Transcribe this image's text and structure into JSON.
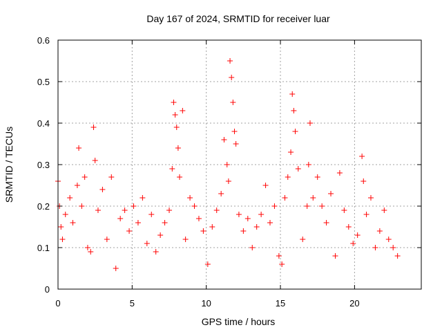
{
  "chart_data": {
    "type": "scatter",
    "title": "Day 167 of 2024, SRMTID for receiver luar",
    "xlabel": "GPS time / hours",
    "ylabel": "SRMTID / TECUs",
    "xlim": [
      0,
      24.5
    ],
    "ylim": [
      0,
      0.6
    ],
    "xticks": [
      0,
      5,
      10,
      15,
      20
    ],
    "xtick_labels": [
      "0",
      "5",
      "10",
      "15",
      "20"
    ],
    "yticks": [
      0,
      0.1,
      0.2,
      0.3,
      0.4,
      0.5,
      0.6
    ],
    "ytick_labels": [
      "0",
      "0.1",
      "0.2",
      "0.3",
      "0.4",
      "0.5",
      "0.6"
    ],
    "grid": true,
    "marker": "plus",
    "color": "#ff0000",
    "x_range_observed": [
      0,
      22.9
    ],
    "series": [
      {
        "name": "SRMTID",
        "x": [
          0.0,
          0.1,
          0.2,
          0.3,
          0.5,
          0.8,
          1.0,
          1.3,
          1.4,
          1.6,
          1.8,
          2.0,
          2.2,
          2.4,
          2.5,
          2.7,
          3.0,
          3.3,
          3.6,
          3.9,
          4.2,
          4.5,
          4.8,
          5.1,
          5.4,
          5.7,
          6.0,
          6.3,
          6.6,
          6.9,
          7.2,
          7.5,
          7.7,
          7.8,
          7.9,
          8.0,
          8.1,
          8.2,
          8.4,
          8.6,
          8.9,
          9.2,
          9.5,
          9.8,
          10.1,
          10.4,
          10.7,
          11.0,
          11.2,
          11.4,
          11.5,
          11.6,
          11.7,
          11.8,
          11.9,
          12.0,
          12.2,
          12.5,
          12.8,
          13.1,
          13.4,
          13.7,
          14.0,
          14.3,
          14.6,
          14.9,
          15.1,
          15.3,
          15.5,
          15.7,
          15.8,
          15.9,
          16.0,
          16.2,
          16.5,
          16.8,
          16.9,
          17.0,
          17.2,
          17.5,
          17.8,
          18.1,
          18.4,
          18.7,
          19.0,
          19.3,
          19.6,
          19.9,
          20.2,
          20.5,
          20.6,
          20.8,
          21.1,
          21.4,
          21.7,
          22.0,
          22.3,
          22.6,
          22.9
        ],
        "y": [
          0.26,
          0.2,
          0.15,
          0.12,
          0.18,
          0.22,
          0.16,
          0.25,
          0.34,
          0.2,
          0.27,
          0.1,
          0.09,
          0.39,
          0.31,
          0.19,
          0.24,
          0.12,
          0.27,
          0.05,
          0.17,
          0.19,
          0.14,
          0.2,
          0.16,
          0.22,
          0.11,
          0.18,
          0.09,
          0.13,
          0.16,
          0.19,
          0.29,
          0.45,
          0.42,
          0.39,
          0.34,
          0.27,
          0.43,
          0.12,
          0.22,
          0.2,
          0.17,
          0.14,
          0.06,
          0.15,
          0.19,
          0.23,
          0.36,
          0.3,
          0.26,
          0.55,
          0.51,
          0.45,
          0.38,
          0.35,
          0.18,
          0.14,
          0.17,
          0.1,
          0.15,
          0.18,
          0.25,
          0.16,
          0.2,
          0.08,
          0.06,
          0.22,
          0.27,
          0.33,
          0.47,
          0.43,
          0.38,
          0.29,
          0.12,
          0.2,
          0.3,
          0.4,
          0.22,
          0.27,
          0.2,
          0.16,
          0.23,
          0.08,
          0.28,
          0.19,
          0.15,
          0.11,
          0.13,
          0.32,
          0.26,
          0.18,
          0.22,
          0.1,
          0.14,
          0.19,
          0.12,
          0.1,
          0.08
        ]
      }
    ]
  }
}
